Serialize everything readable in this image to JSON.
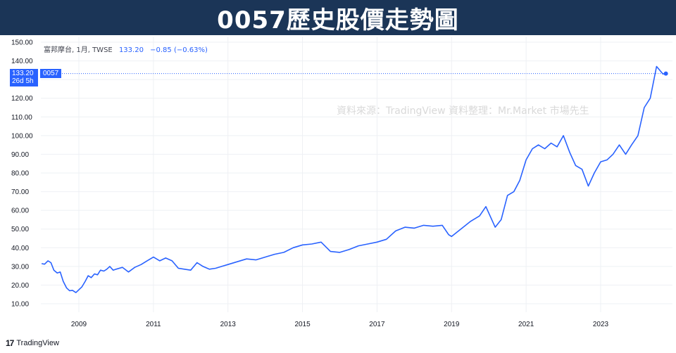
{
  "header": {
    "title": "0057歷史股價走勢圖"
  },
  "legend": {
    "name": "富邦摩台, 1月, TWSE",
    "price": "133.20",
    "change": "−0.85 (−0.63%)"
  },
  "price_badge": {
    "price": "133.20",
    "countdown": "26d 5h"
  },
  "symbol_badge": "0057",
  "watermark": "資料來源：TradingView 資料整理：Mr.Market 市場先生",
  "logo_text": "TradingView",
  "logo_icon": "tradingview-logo-icon",
  "colors": {
    "line": "#2962ff",
    "header_bg": "#1b3557",
    "grid": "#eef0f4"
  },
  "chart_data": {
    "type": "line",
    "title": "",
    "xlabel": "",
    "ylabel": "",
    "xlim": [
      2008.0,
      2024.83
    ],
    "ylim": [
      10,
      150
    ],
    "y_ticks": [
      "150.00",
      "140.00",
      "130.00",
      "120.00",
      "110.00",
      "100.00",
      "90.00",
      "80.00",
      "70.00",
      "60.00",
      "50.00",
      "40.00",
      "30.00",
      "20.00",
      "10.00"
    ],
    "x_ticks": [
      "2009",
      "2011",
      "2013",
      "2015",
      "2017",
      "2019",
      "2021",
      "2023"
    ],
    "grid": true,
    "last_value": 133.2,
    "series": [
      {
        "name": "0057",
        "x": [
          2008.0,
          2008.08,
          2008.17,
          2008.25,
          2008.33,
          2008.42,
          2008.5,
          2008.58,
          2008.67,
          2008.75,
          2008.83,
          2008.92,
          2009.0,
          2009.08,
          2009.17,
          2009.25,
          2009.33,
          2009.42,
          2009.5,
          2009.58,
          2009.67,
          2009.75,
          2009.83,
          2009.92,
          2010.0,
          2010.17,
          2010.33,
          2010.5,
          2010.67,
          2010.83,
          2011.0,
          2011.17,
          2011.33,
          2011.5,
          2011.67,
          2011.83,
          2012.0,
          2012.17,
          2012.33,
          2012.5,
          2012.67,
          2012.83,
          2013.0,
          2013.25,
          2013.5,
          2013.75,
          2014.0,
          2014.25,
          2014.5,
          2014.75,
          2015.0,
          2015.25,
          2015.5,
          2015.75,
          2016.0,
          2016.25,
          2016.5,
          2016.75,
          2017.0,
          2017.25,
          2017.5,
          2017.75,
          2018.0,
          2018.25,
          2018.5,
          2018.75,
          2018.92,
          2019.0,
          2019.25,
          2019.5,
          2019.75,
          2019.92,
          2020.08,
          2020.17,
          2020.33,
          2020.5,
          2020.67,
          2020.83,
          2021.0,
          2021.17,
          2021.33,
          2021.5,
          2021.67,
          2021.83,
          2022.0,
          2022.17,
          2022.33,
          2022.5,
          2022.67,
          2022.83,
          2023.0,
          2023.17,
          2023.33,
          2023.5,
          2023.67,
          2023.83,
          2024.0,
          2024.17,
          2024.33,
          2024.5,
          2024.67,
          2024.75
        ],
        "values": [
          31.5,
          31.2,
          33,
          32,
          28,
          26.5,
          27,
          22,
          18.5,
          17,
          17.2,
          16,
          17.5,
          19,
          22,
          25,
          24,
          26,
          25.5,
          28,
          27.5,
          28.5,
          30,
          28,
          28.5,
          29.5,
          27,
          29.5,
          31,
          33,
          35,
          33,
          34.5,
          33,
          29,
          28.5,
          28,
          32,
          30,
          28.5,
          29,
          30,
          31,
          32.5,
          34,
          33.5,
          35,
          36.5,
          37.5,
          40,
          41.5,
          42,
          43,
          38,
          37.5,
          39,
          41,
          42,
          43,
          44.5,
          49,
          51,
          50.5,
          52,
          51.5,
          52,
          47,
          46,
          50,
          54,
          57,
          62,
          55,
          51,
          55,
          68,
          70,
          76,
          87,
          93,
          95,
          93,
          96,
          94,
          100,
          91,
          84,
          82,
          73,
          80,
          86,
          87,
          90,
          95,
          90,
          95,
          100,
          115,
          120,
          137,
          133,
          133.2
        ]
      }
    ]
  }
}
